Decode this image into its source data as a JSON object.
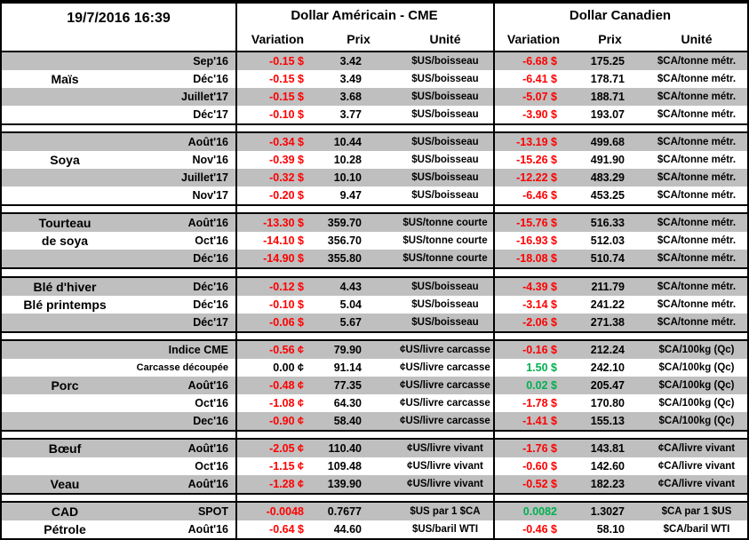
{
  "meta": {
    "timestamp": "19/7/2016 16:39"
  },
  "groups": {
    "usd": "Dollar Américain - CME",
    "cad": "Dollar Canadien"
  },
  "columns": {
    "variation": "Variation",
    "prix": "Prix",
    "unite": "Unité"
  },
  "colors": {
    "negative": "#ff0000",
    "positive": "#00b050",
    "neutral": "#000000",
    "stripe": "#bfbfbf"
  },
  "sections": [
    {
      "rows": [
        {
          "label": "",
          "month": "Sep'16",
          "usd_var": "-0.15 $",
          "usd_prix": "3.42",
          "usd_unit": "$US/boisseau",
          "cad_var": "-6.68 $",
          "cad_prix": "175.25",
          "cad_unit": "$CA/tonne métr."
        },
        {
          "label": "Maïs",
          "month": "Déc'16",
          "usd_var": "-0.15 $",
          "usd_prix": "3.49",
          "usd_unit": "$US/boisseau",
          "cad_var": "-6.41 $",
          "cad_prix": "178.71",
          "cad_unit": "$CA/tonne métr."
        },
        {
          "label": "",
          "month": "Juillet'17",
          "usd_var": "-0.15 $",
          "usd_prix": "3.68",
          "usd_unit": "$US/boisseau",
          "cad_var": "-5.07 $",
          "cad_prix": "188.71",
          "cad_unit": "$CA/tonne métr."
        },
        {
          "label": "",
          "month": "Déc'17",
          "usd_var": "-0.10 $",
          "usd_prix": "3.77",
          "usd_unit": "$US/boisseau",
          "cad_var": "-3.90 $",
          "cad_prix": "193.07",
          "cad_unit": "$CA/tonne métr."
        }
      ]
    },
    {
      "rows": [
        {
          "label": "",
          "month": "Août'16",
          "usd_var": "-0.34 $",
          "usd_prix": "10.44",
          "usd_unit": "$US/boisseau",
          "cad_var": "-13.19 $",
          "cad_prix": "499.68",
          "cad_unit": "$CA/tonne métr."
        },
        {
          "label": "Soya",
          "month": "Nov'16",
          "usd_var": "-0.39 $",
          "usd_prix": "10.28",
          "usd_unit": "$US/boisseau",
          "cad_var": "-15.26 $",
          "cad_prix": "491.90",
          "cad_unit": "$CA/tonne métr."
        },
        {
          "label": "",
          "month": "Juillet'17",
          "usd_var": "-0.32 $",
          "usd_prix": "10.10",
          "usd_unit": "$US/boisseau",
          "cad_var": "-12.22 $",
          "cad_prix": "483.29",
          "cad_unit": "$CA/tonne métr."
        },
        {
          "label": "",
          "month": "Nov'17",
          "usd_var": "-0.20 $",
          "usd_prix": "9.47",
          "usd_unit": "$US/boisseau",
          "cad_var": "-6.46 $",
          "cad_prix": "453.25",
          "cad_unit": "$CA/tonne métr."
        }
      ]
    },
    {
      "rows": [
        {
          "label": "Tourteau",
          "month": "Août'16",
          "usd_var": "-13.30 $",
          "usd_prix": "359.70",
          "usd_unit": "$US/tonne courte",
          "cad_var": "-15.76 $",
          "cad_prix": "516.33",
          "cad_unit": "$CA/tonne métr."
        },
        {
          "label": "de soya",
          "month": "Oct'16",
          "usd_var": "-14.10 $",
          "usd_prix": "356.70",
          "usd_unit": "$US/tonne courte",
          "cad_var": "-16.93 $",
          "cad_prix": "512.03",
          "cad_unit": "$CA/tonne métr."
        },
        {
          "label": "",
          "month": "Déc'16",
          "usd_var": "-14.90 $",
          "usd_prix": "355.80",
          "usd_unit": "$US/tonne courte",
          "cad_var": "-18.08 $",
          "cad_prix": "510.74",
          "cad_unit": "$CA/tonne métr."
        }
      ]
    },
    {
      "rows": [
        {
          "label": "Blé d'hiver",
          "month": "Déc'16",
          "usd_var": "-0.12 $",
          "usd_prix": "4.43",
          "usd_unit": "$US/boisseau",
          "cad_var": "-4.39 $",
          "cad_prix": "211.79",
          "cad_unit": "$CA/tonne métr."
        },
        {
          "label": "Blé printemps",
          "month": "Déc'16",
          "usd_var": "-0.10 $",
          "usd_prix": "5.04",
          "usd_unit": "$US/boisseau",
          "cad_var": "-3.14 $",
          "cad_prix": "241.22",
          "cad_unit": "$CA/tonne métr."
        },
        {
          "label": "",
          "month": "Déc'17",
          "usd_var": "-0.06 $",
          "usd_prix": "5.67",
          "usd_unit": "$US/boisseau",
          "cad_var": "-2.06 $",
          "cad_prix": "271.38",
          "cad_unit": "$CA/tonne métr."
        }
      ]
    },
    {
      "rows": [
        {
          "label": "",
          "month": "Indice CME",
          "usd_var": "-0.56 ¢",
          "usd_prix": "79.90",
          "usd_unit": "¢US/livre carcasse",
          "cad_var": "-0.16 $",
          "cad_prix": "212.24",
          "cad_unit": "$CA/100kg (Qc)"
        },
        {
          "label": "",
          "month": "Carcasse découpée",
          "usd_var": "0.00 ¢",
          "usd_prix": "91.14",
          "usd_unit": "¢US/livre carcasse",
          "cad_var": "1.50 $",
          "cad_prix": "242.10",
          "cad_unit": "$CA/100kg (Qc)"
        },
        {
          "label": "Porc",
          "month": "Août'16",
          "usd_var": "-0.48 ¢",
          "usd_prix": "77.35",
          "usd_unit": "¢US/livre carcasse",
          "cad_var": "0.02 $",
          "cad_prix": "205.47",
          "cad_unit": "$CA/100kg (Qc)"
        },
        {
          "label": "",
          "month": "Oct'16",
          "usd_var": "-1.08 ¢",
          "usd_prix": "64.30",
          "usd_unit": "¢US/livre carcasse",
          "cad_var": "-1.78 $",
          "cad_prix": "170.80",
          "cad_unit": "$CA/100kg (Qc)"
        },
        {
          "label": "",
          "month": "Dec'16",
          "usd_var": "-0.90 ¢",
          "usd_prix": "58.40",
          "usd_unit": "¢US/livre carcasse",
          "cad_var": "-1.41 $",
          "cad_prix": "155.13",
          "cad_unit": "$CA/100kg (Qc)"
        }
      ]
    },
    {
      "rows": [
        {
          "label": "Bœuf",
          "month": "Août'16",
          "usd_var": "-2.05 ¢",
          "usd_prix": "110.40",
          "usd_unit": "¢US/livre vivant",
          "cad_var": "-1.76 $",
          "cad_prix": "143.81",
          "cad_unit": "¢CA/livre vivant"
        },
        {
          "label": "",
          "month": "Oct'16",
          "usd_var": "-1.15 ¢",
          "usd_prix": "109.48",
          "usd_unit": "¢US/livre vivant",
          "cad_var": "-0.60 $",
          "cad_prix": "142.60",
          "cad_unit": "¢CA/livre vivant"
        },
        {
          "label": "Veau",
          "month": "Août'16",
          "usd_var": "-1.28 ¢",
          "usd_prix": "139.90",
          "usd_unit": "¢US/livre vivant",
          "cad_var": "-0.52 $",
          "cad_prix": "182.23",
          "cad_unit": "¢CA/livre vivant"
        }
      ]
    },
    {
      "rows": [
        {
          "label": "CAD",
          "month": "SPOT",
          "usd_var": "-0.0048",
          "usd_prix": "0.7677",
          "usd_unit": "$US par 1 $CA",
          "cad_var": "0.0082",
          "cad_prix": "1.3027",
          "cad_unit": "$CA par 1 $US"
        },
        {
          "label": "Pétrole",
          "month": "Août'16",
          "usd_var": "-0.64 $",
          "usd_prix": "44.60",
          "usd_unit": "$US/baril WTI",
          "cad_var": "-0.46 $",
          "cad_prix": "58.10",
          "cad_unit": "$CA/baril WTI"
        }
      ]
    }
  ]
}
